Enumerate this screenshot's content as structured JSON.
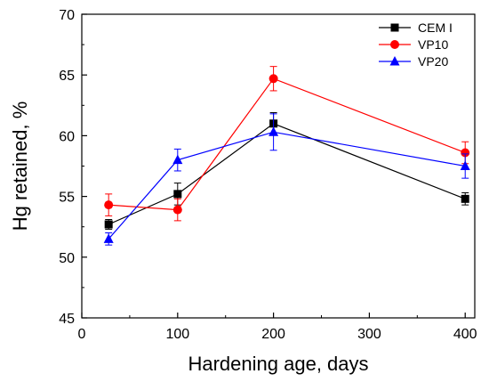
{
  "chart_data": {
    "type": "line",
    "xlabel": "Hardening age, days",
    "ylabel": "Hg retained, %",
    "xlim": [
      0,
      410
    ],
    "ylim": [
      45,
      70
    ],
    "xticks": [
      0,
      100,
      200,
      300,
      400
    ],
    "yticks": [
      45,
      50,
      55,
      60,
      65,
      70
    ],
    "legend_position": "top-right",
    "grid": false,
    "series": [
      {
        "name": "CEM I",
        "color": "#000000",
        "marker": "square",
        "x": [
          28,
          100,
          200,
          400
        ],
        "y": [
          52.7,
          55.2,
          61.0,
          54.8
        ],
        "error": [
          0.4,
          0.9,
          0.9,
          0.5
        ]
      },
      {
        "name": "VP10",
        "color": "#ff0000",
        "marker": "circle",
        "x": [
          28,
          100,
          200,
          400
        ],
        "y": [
          54.3,
          53.9,
          64.7,
          58.6
        ],
        "error": [
          0.9,
          0.9,
          1.0,
          0.9
        ]
      },
      {
        "name": "VP20",
        "color": "#0000ff",
        "marker": "triangle",
        "x": [
          28,
          100,
          200,
          400
        ],
        "y": [
          51.5,
          58.0,
          60.3,
          57.5
        ],
        "error": [
          0.5,
          0.9,
          1.5,
          1.0
        ]
      }
    ]
  }
}
